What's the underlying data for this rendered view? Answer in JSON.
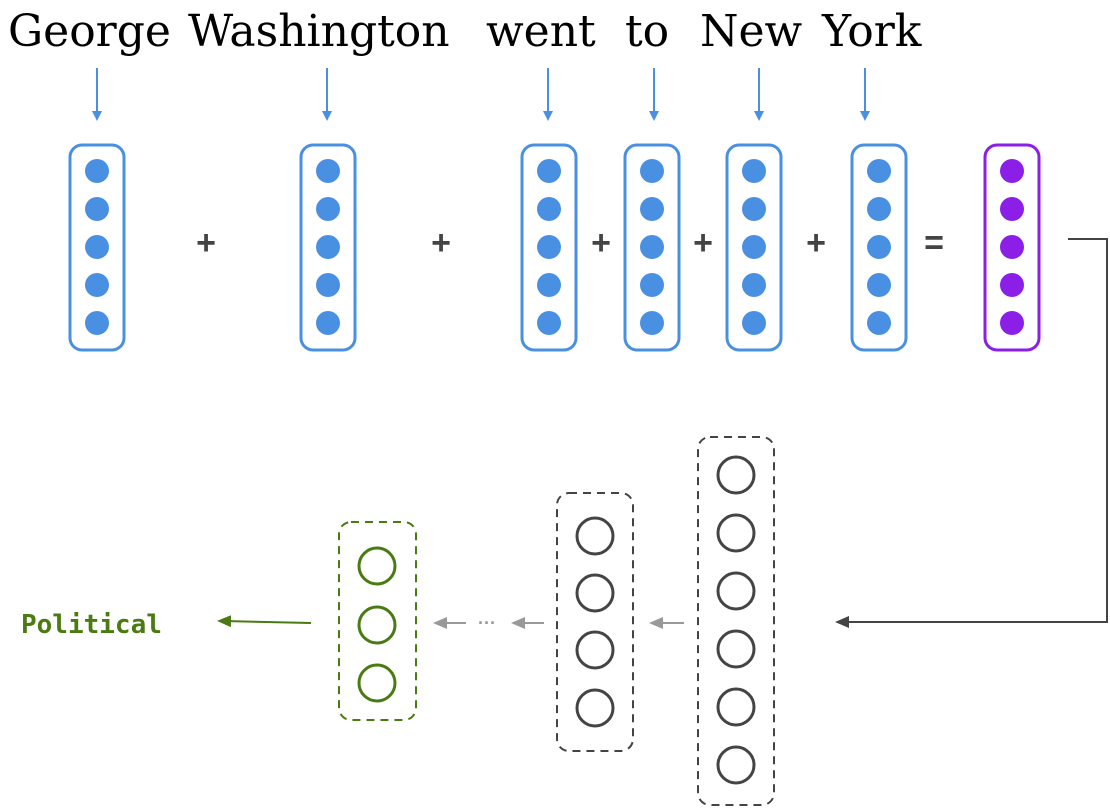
{
  "words": [
    "George",
    "Washington",
    "went",
    "to",
    "New",
    "York"
  ],
  "operators": [
    "+",
    "+",
    "+",
    "+",
    "+",
    "="
  ],
  "output_label": "Political",
  "ellipsis": "···",
  "colors": {
    "word_vector": "#4a90e2",
    "sum_vector": "#8b1fe8",
    "hidden_layer": "#444444",
    "output_layer": "#4a7a12",
    "connector": "#444444",
    "faded_arrow": "#999999"
  },
  "layers": {
    "word_vector_units": 5,
    "sum_vector_units": 5,
    "hidden_layer_units": [
      6,
      4
    ],
    "output_layer_units": 3
  }
}
